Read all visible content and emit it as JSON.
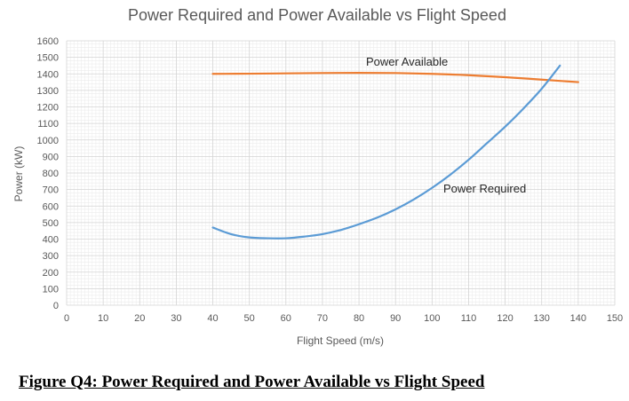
{
  "caption": "Figure Q4: Power Required and Power Available vs Flight Speed",
  "chart_data": {
    "type": "line",
    "title": "Power Required and Power Available vs Flight Speed",
    "xlabel": "Flight Speed (m/s)",
    "ylabel": "Power (kW)",
    "xlim": [
      0,
      150
    ],
    "ylim": [
      0,
      1600
    ],
    "xticks": [
      0,
      10,
      20,
      30,
      40,
      50,
      60,
      70,
      80,
      90,
      100,
      110,
      120,
      130,
      140,
      150
    ],
    "yticks": [
      0,
      100,
      200,
      300,
      400,
      500,
      600,
      700,
      800,
      900,
      1000,
      1100,
      1200,
      1300,
      1400,
      1500,
      1600
    ],
    "grid": true,
    "legend": "none",
    "series": [
      {
        "name": "Power Available",
        "color": "#ED7D31",
        "x": [
          40,
          50,
          60,
          70,
          80,
          90,
          100,
          110,
          120,
          130,
          140
        ],
        "y": [
          1400,
          1401,
          1403,
          1405,
          1406,
          1405,
          1400,
          1392,
          1380,
          1365,
          1350
        ]
      },
      {
        "name": "Power Required",
        "color": "#5B9BD5",
        "x": [
          40,
          45,
          50,
          55,
          60,
          65,
          70,
          75,
          80,
          85,
          90,
          95,
          100,
          105,
          110,
          115,
          120,
          125,
          130,
          135
        ],
        "y": [
          470,
          430,
          410,
          405,
          405,
          415,
          430,
          455,
          490,
          530,
          580,
          640,
          710,
          790,
          880,
          980,
          1080,
          1190,
          1310,
          1450
        ]
      }
    ],
    "annotations": [
      {
        "text": "Power Available",
        "series": 0
      },
      {
        "text": "Power Required",
        "series": 1
      }
    ]
  }
}
